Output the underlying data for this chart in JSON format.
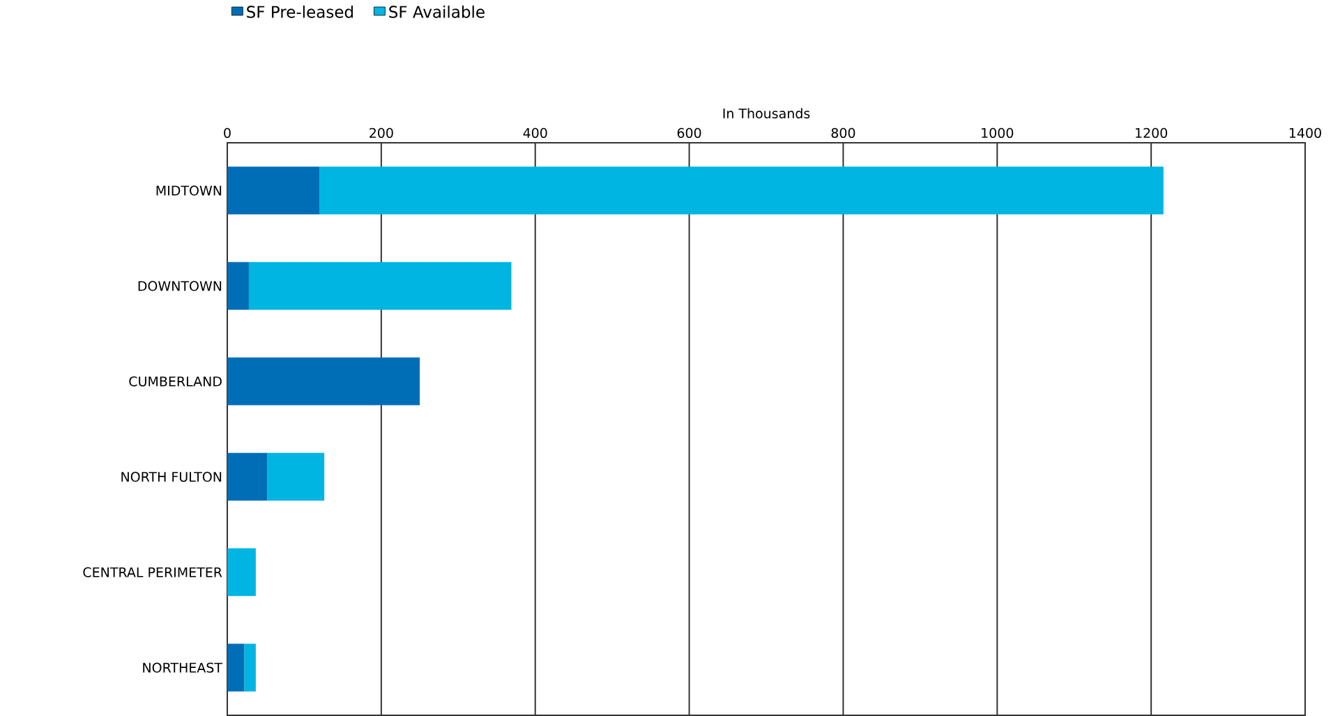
{
  "chart_data": {
    "type": "bar",
    "orientation": "horizontal",
    "stacked": true,
    "xlabel": "In Thousands",
    "categories": [
      "MIDTOWN",
      "DOWNTOWN",
      "CUMBERLAND",
      "NORTH FULTON",
      "CENTRAL PERIMETER",
      "NORTHEAST"
    ],
    "series": [
      {
        "name": "SF Pre-leased",
        "color": "#006eb6",
        "values": [
          120,
          28,
          250,
          52,
          0,
          22
        ]
      },
      {
        "name": "SF Available",
        "color": "#00b5e2",
        "values": [
          1096,
          341,
          0,
          74,
          37,
          15
        ]
      }
    ],
    "xlim": [
      0,
      1400
    ],
    "xticks": [
      0,
      200,
      400,
      600,
      800,
      1000,
      1200,
      1400
    ],
    "grid": "x",
    "legend": "top left"
  }
}
